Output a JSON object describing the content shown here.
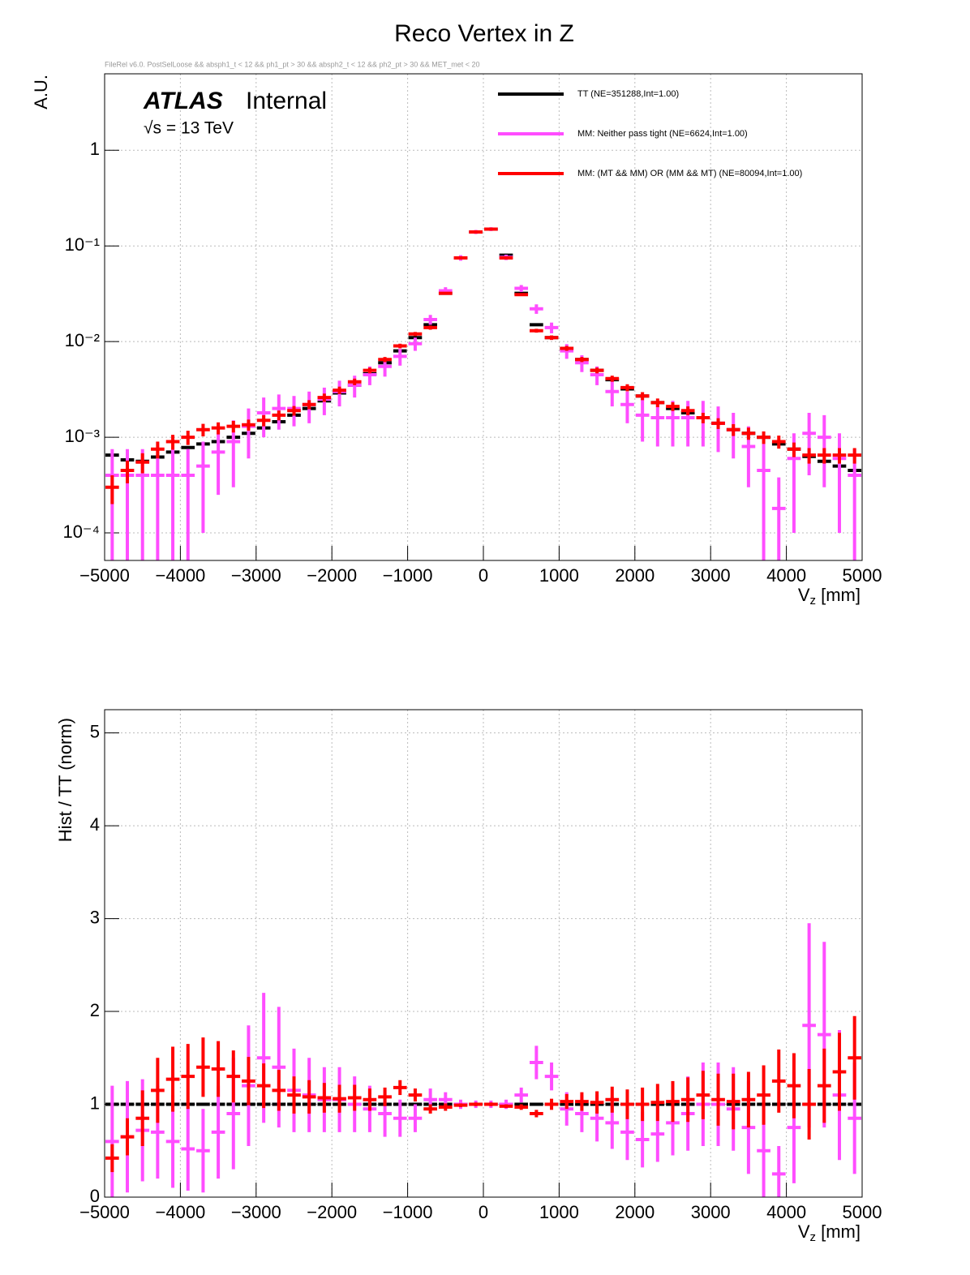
{
  "chart_data": [
    {
      "type": "histogram",
      "title": "Reco Vertex in Z",
      "subtitle": "FileRel v6.0. PostSelLoose && absph1_t < 12 && ph1_pt > 30 && absph2_t < 12 && ph2_pt > 30 && MET_met < 20",
      "annotations": {
        "experiment": "ATLAS",
        "status": "Internal",
        "energy": "√s = 13 TeV"
      },
      "y_label": "A.U.",
      "x_label": {
        "main": "V",
        "sub": "z",
        "unit": " [mm]"
      },
      "log_y": true,
      "grid": true,
      "xlim": [
        -5000,
        5000
      ],
      "xticks": [
        {
          "value": -5000,
          "label": "−5000"
        },
        {
          "value": -4000,
          "label": "−4000"
        },
        {
          "value": -3000,
          "label": "−3000"
        },
        {
          "value": -2000,
          "label": "−2000"
        },
        {
          "value": -1000,
          "label": "−1000"
        },
        0,
        1000,
        2000,
        3000,
        4000,
        5000
      ],
      "ylim": [
        5.15e-05,
        6.3
      ],
      "yticks": [
        {
          "value": 0.0001,
          "label": "10⁻⁴"
        },
        {
          "value": 0.001,
          "label": "10⁻³"
        },
        {
          "value": 0.01,
          "label": "10⁻²"
        },
        {
          "value": 0.1,
          "label": "10⁻¹"
        },
        1
      ],
      "bins": [
        -5000,
        -4800,
        -4600,
        -4400,
        -4200,
        -4000,
        -3800,
        -3600,
        -3400,
        -3200,
        -3000,
        -2800,
        -2600,
        -2400,
        -2200,
        -2000,
        -1800,
        -1600,
        -1400,
        -1200,
        -1000,
        -800,
        -600,
        -400,
        -200,
        0,
        200,
        400,
        600,
        800,
        1000,
        1200,
        1400,
        1600,
        1800,
        2000,
        2200,
        2400,
        2600,
        2800,
        3000,
        3200,
        3400,
        3600,
        3800,
        4000,
        4200,
        4400,
        4600,
        4800,
        5000
      ],
      "series": [
        {
          "name": "TT (NE=351288,Int=1.00)",
          "color": "#000000",
          "values": [
            0.00065,
            0.00058,
            0.00056,
            0.00062,
            0.0007,
            0.00078,
            0.00085,
            0.0009,
            0.001,
            0.0011,
            0.00125,
            0.00145,
            0.0017,
            0.002,
            0.0024,
            0.0029,
            0.0035,
            0.0046,
            0.006,
            0.008,
            0.011,
            0.015,
            0.032,
            0.075,
            0.14,
            0.15,
            0.08,
            0.032,
            0.015,
            0.011,
            0.0085,
            0.0065,
            0.005,
            0.004,
            0.0032,
            0.0027,
            0.0023,
            0.002,
            0.0018,
            0.0016,
            0.0014,
            0.0012,
            0.0011,
            0.001,
            0.00085,
            0.00075,
            0.00063,
            0.00056,
            0.0005,
            0.00045
          ]
        },
        {
          "name": "MM: Neither pass tight (NE=6624,Int=1.00)",
          "color": "#ff4dff",
          "values": [
            0.0004,
            0.0004,
            0.0004,
            0.0004,
            0.0004,
            0.0004,
            0.0005,
            0.0007,
            0.0009,
            0.0013,
            0.0018,
            0.002,
            0.002,
            0.0022,
            0.0025,
            0.003,
            0.0035,
            0.0045,
            0.0055,
            0.007,
            0.0095,
            0.017,
            0.034,
            0.075,
            0.14,
            0.15,
            0.076,
            0.036,
            0.022,
            0.014,
            0.008,
            0.006,
            0.0045,
            0.003,
            0.0022,
            0.0017,
            0.0016,
            0.0016,
            0.0016,
            0.0016,
            0.0014,
            0.0012,
            0.0008,
            0.00045,
            0.00018,
            0.0006,
            0.0011,
            0.001,
            0.0006,
            0.0004
          ],
          "errors": [
            0.00035,
            0.00035,
            0.00035,
            0.00035,
            0.00035,
            0.00035,
            0.0004,
            0.00045,
            0.0006,
            0.0007,
            0.0008,
            0.0008,
            0.0007,
            0.0008,
            0.0008,
            0.0009,
            0.0009,
            0.001,
            0.0012,
            0.0014,
            0.0015,
            0.002,
            0.003,
            0.005,
            0.007,
            0.007,
            0.005,
            0.003,
            0.0025,
            0.0018,
            0.0014,
            0.0012,
            0.001,
            0.0009,
            0.0008,
            0.0008,
            0.0008,
            0.0008,
            0.0008,
            0.0008,
            0.0007,
            0.0006,
            0.0005,
            0.0004,
            0.0002,
            0.0005,
            0.0007,
            0.0007,
            0.0005,
            0.00035
          ]
        },
        {
          "name": "MM: (MT && MM) OR (MM && MT) (NE=80094,Int=1.00)",
          "color": "#ff0000",
          "values": [
            0.0003,
            0.00045,
            0.00055,
            0.00075,
            0.0009,
            0.001,
            0.0012,
            0.00125,
            0.0013,
            0.00135,
            0.0015,
            0.0017,
            0.0019,
            0.0022,
            0.0026,
            0.0031,
            0.0038,
            0.005,
            0.0065,
            0.009,
            0.012,
            0.014,
            0.032,
            0.075,
            0.14,
            0.15,
            0.075,
            0.031,
            0.013,
            0.011,
            0.0085,
            0.0065,
            0.005,
            0.0041,
            0.0033,
            0.0027,
            0.0023,
            0.0021,
            0.0019,
            0.0016,
            0.0014,
            0.0012,
            0.0011,
            0.001,
            0.0009,
            0.00075,
            0.00065,
            0.00065,
            0.00065,
            0.00065
          ],
          "errors": [
            0.0001,
            0.00012,
            0.00013,
            0.00015,
            0.00016,
            0.00017,
            0.00018,
            0.00018,
            0.00018,
            0.00018,
            0.0002,
            0.0002,
            0.00022,
            0.00024,
            0.00026,
            0.00028,
            0.0003,
            0.00035,
            0.0004,
            0.0005,
            0.0006,
            0.0007,
            0.001,
            0.0015,
            0.002,
            0.002,
            0.0015,
            0.001,
            0.0006,
            0.0006,
            0.0005,
            0.0004,
            0.00035,
            0.0003,
            0.00028,
            0.00026,
            0.00024,
            0.00022,
            0.0002,
            0.0002,
            0.00018,
            0.00017,
            0.00016,
            0.00015,
            0.00014,
            0.00013,
            0.00012,
            0.00012,
            0.00012,
            0.00012
          ]
        }
      ]
    },
    {
      "type": "histogram",
      "y_label": "Hist / TT (norm)",
      "x_label": {
        "main": "V",
        "sub": "z",
        "unit": " [mm]"
      },
      "log_y": false,
      "grid": true,
      "xlim": [
        -5000,
        5000
      ],
      "xticks": [
        {
          "value": -5000,
          "label": "−5000"
        },
        {
          "value": -4000,
          "label": "−4000"
        },
        {
          "value": -3000,
          "label": "−3000"
        },
        {
          "value": -2000,
          "label": "−2000"
        },
        {
          "value": -1000,
          "label": "−1000"
        },
        0,
        1000,
        2000,
        3000,
        4000,
        5000
      ],
      "ylim": [
        0,
        5.25
      ],
      "yticks": [
        0,
        1,
        2,
        3,
        4,
        5
      ],
      "bins": [
        -5000,
        -4800,
        -4600,
        -4400,
        -4200,
        -4000,
        -3800,
        -3600,
        -3400,
        -3200,
        -3000,
        -2800,
        -2600,
        -2400,
        -2200,
        -2000,
        -1800,
        -1600,
        -1400,
        -1200,
        -1000,
        -800,
        -600,
        -400,
        -200,
        0,
        200,
        400,
        600,
        800,
        1000,
        1200,
        1400,
        1600,
        1800,
        2000,
        2200,
        2400,
        2600,
        2800,
        3000,
        3200,
        3400,
        3600,
        3800,
        4000,
        4200,
        4400,
        4600,
        4800,
        5000
      ],
      "series": [
        {
          "color": "#000000",
          "values": [
            1,
            1,
            1,
            1,
            1,
            1,
            1,
            1,
            1,
            1,
            1,
            1,
            1,
            1,
            1,
            1,
            1,
            1,
            1,
            1,
            1,
            1,
            1,
            1,
            1,
            1,
            1,
            1,
            1,
            1,
            1,
            1,
            1,
            1,
            1,
            1,
            1,
            1,
            1,
            1,
            1,
            1,
            1,
            1,
            1,
            1,
            1,
            1,
            1,
            1
          ]
        },
        {
          "color": "#ff4dff",
          "values": [
            0.6,
            0.65,
            0.72,
            0.7,
            0.6,
            0.52,
            0.5,
            0.7,
            0.9,
            1.2,
            1.5,
            1.4,
            1.15,
            1.1,
            1.05,
            1.05,
            1.0,
            0.95,
            0.9,
            0.85,
            0.85,
            1.05,
            1.05,
            1.0,
            1.0,
            1.0,
            1.0,
            1.1,
            1.45,
            1.3,
            0.95,
            0.9,
            0.85,
            0.8,
            0.7,
            0.62,
            0.68,
            0.8,
            0.9,
            1.0,
            1.0,
            0.95,
            0.75,
            0.5,
            0.25,
            0.75,
            1.85,
            1.75,
            1.1,
            0.85
          ],
          "errors": [
            0.6,
            0.6,
            0.55,
            0.5,
            0.5,
            0.45,
            0.45,
            0.5,
            0.6,
            0.65,
            0.7,
            0.65,
            0.45,
            0.4,
            0.35,
            0.35,
            0.3,
            0.25,
            0.25,
            0.2,
            0.15,
            0.12,
            0.08,
            0.05,
            0.04,
            0.04,
            0.05,
            0.08,
            0.18,
            0.15,
            0.18,
            0.2,
            0.25,
            0.28,
            0.3,
            0.3,
            0.3,
            0.35,
            0.4,
            0.45,
            0.45,
            0.45,
            0.5,
            0.5,
            0.3,
            0.6,
            1.1,
            1.0,
            0.7,
            0.6
          ]
        },
        {
          "color": "#ff0000",
          "values": [
            0.42,
            0.65,
            0.85,
            1.15,
            1.27,
            1.3,
            1.4,
            1.38,
            1.3,
            1.25,
            1.2,
            1.15,
            1.1,
            1.08,
            1.07,
            1.06,
            1.07,
            1.05,
            1.08,
            1.18,
            1.1,
            0.95,
            0.97,
            0.99,
            1.0,
            1.0,
            0.98,
            0.97,
            0.9,
            1.0,
            1.03,
            1.03,
            1.02,
            1.05,
            1.0,
            1.0,
            1.02,
            1.03,
            1.05,
            1.1,
            1.05,
            1.03,
            1.05,
            1.1,
            1.25,
            1.2,
            1.0,
            1.2,
            1.35,
            1.5
          ],
          "errors": [
            0.15,
            0.2,
            0.3,
            0.35,
            0.35,
            0.35,
            0.32,
            0.3,
            0.28,
            0.26,
            0.24,
            0.22,
            0.2,
            0.18,
            0.16,
            0.15,
            0.14,
            0.12,
            0.1,
            0.08,
            0.07,
            0.05,
            0.04,
            0.02,
            0.02,
            0.02,
            0.02,
            0.03,
            0.04,
            0.06,
            0.08,
            0.1,
            0.12,
            0.14,
            0.16,
            0.18,
            0.2,
            0.22,
            0.24,
            0.26,
            0.28,
            0.3,
            0.3,
            0.32,
            0.34,
            0.35,
            0.38,
            0.4,
            0.42,
            0.45
          ]
        }
      ]
    }
  ]
}
